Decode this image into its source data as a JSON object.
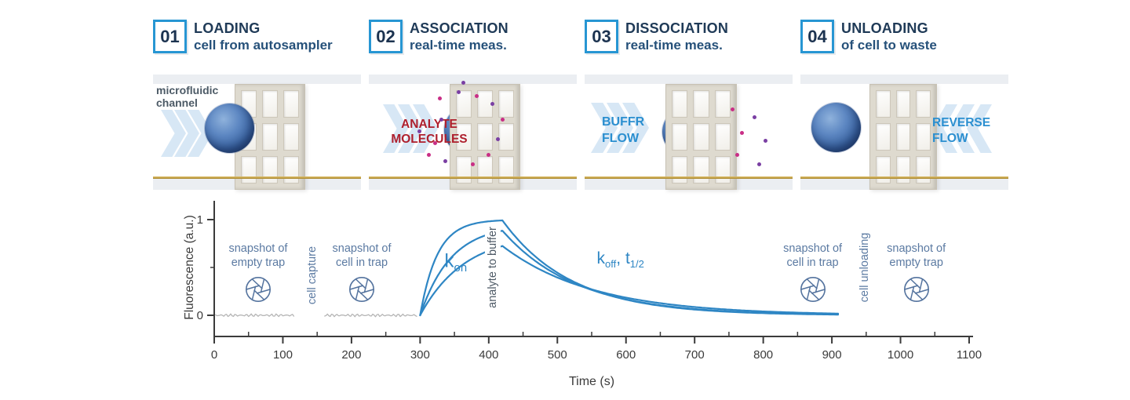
{
  "colors": {
    "accent_blue": "#2796d3",
    "navy_title": "#1f3a57",
    "flow_blue": "#2b8fd0",
    "analyte_red": "#ae1f2d",
    "chart_curve_blue": "#2e86c4",
    "baseline_gray": "#b5b5b5",
    "annotation_slate": "#5b7aa2",
    "axis_gray": "#3b3b3b",
    "gold_substrate": "#b8963c"
  },
  "steps": [
    {
      "number": "01",
      "title": "LOADING",
      "subtitle": "cell from autosampler",
      "panel_label": "microfluidic channel"
    },
    {
      "number": "02",
      "title": "ASSOCIATION",
      "subtitle": "real-time meas.",
      "panel_label": "ANALYTE MOLECULES"
    },
    {
      "number": "03",
      "title": "DISSOCIATION",
      "subtitle": "real-time meas.",
      "panel_label": "BUFFR FLOW"
    },
    {
      "number": "04",
      "title": "UNLOADING",
      "subtitle": "of cell to waste",
      "panel_label": "REVERSE FLOW"
    }
  ],
  "chart_data": {
    "type": "line",
    "title": "",
    "xlabel": "Time (s)",
    "ylabel": "Fluorescence (a.u.)",
    "xlim": [
      0,
      1100
    ],
    "ylim": [
      -0.29,
      1.15
    ],
    "xticks_major": [
      0,
      100,
      200,
      300,
      400,
      500,
      600,
      700,
      800,
      900,
      1000,
      1100
    ],
    "xticks_minor_step": 50,
    "yticks_major": [
      0,
      1
    ],
    "yticks_minor": [
      0.5
    ],
    "grid": false,
    "legend": "none",
    "series": [
      {
        "name": "baseline-empty-trap",
        "type": "noisy-flat",
        "color": "#b5b5b5",
        "t_start": 2,
        "t_end": 116,
        "value": 0
      },
      {
        "name": "baseline-cell-in-trap",
        "type": "noisy-flat",
        "color": "#b5b5b5",
        "t_start": 161,
        "t_end": 296,
        "value": 0
      },
      {
        "name": "binding-curve-fast",
        "type": "assoc-dissoc",
        "color": "#2e86c4",
        "t_start": 300,
        "t_switch": 420,
        "t_end": 910,
        "amplitude": 1.0,
        "tau_on_s": 25,
        "tau_off_s": 100
      },
      {
        "name": "binding-curve-mid",
        "type": "assoc-dissoc",
        "color": "#2e86c4",
        "t_start": 300,
        "t_switch": 420,
        "t_end": 910,
        "amplitude": 0.95,
        "tau_on_s": 45,
        "tau_off_s": 108
      },
      {
        "name": "binding-curve-slow",
        "type": "assoc-dissoc",
        "color": "#2e86c4",
        "t_start": 300,
        "t_switch": 420,
        "t_end": 910,
        "amplitude": 0.86,
        "tau_on_s": 65,
        "tau_off_s": 132
      }
    ],
    "annotations": [
      {
        "name": "snapshot-empty-trap-left-label",
        "lines": [
          "snapshot of",
          "empty trap"
        ],
        "x_s": 64,
        "y_au": 0.62,
        "icon": "aperture",
        "icon_y_au": 0.27
      },
      {
        "name": "cell-capture-label",
        "text": "cell capture",
        "x_s": 143,
        "y_au": 0.42,
        "rotate": true
      },
      {
        "name": "snapshot-cell-in-trap-left-label",
        "lines": [
          "snapshot of",
          "cell in trap"
        ],
        "x_s": 215,
        "y_au": 0.62,
        "icon": "aperture",
        "icon_y_au": 0.27
      },
      {
        "name": "kon-label",
        "parts": [
          {
            "text": "k"
          },
          {
            "text": "on",
            "sub": true
          }
        ],
        "x_s": 352,
        "y_au": 0.55,
        "color": "#2e86c4",
        "font_px": 24
      },
      {
        "name": "analyte-to-buffer-label",
        "text": "analyte to buffer",
        "x_s": 406,
        "y_au": 0.5,
        "rotate": true,
        "bg": "#ffffff",
        "color": "#4d5965"
      },
      {
        "name": "koff-thalf-label",
        "parts": [
          {
            "text": "k"
          },
          {
            "text": "off",
            "sub": true
          },
          {
            "text": ", t"
          },
          {
            "text": "1/2",
            "sub": true
          }
        ],
        "x_s": 592,
        "y_au": 0.58,
        "color": "#2e86c4",
        "font_px": 21
      },
      {
        "name": "snapshot-cell-in-trap-right-label",
        "lines": [
          "snapshot of",
          "cell in trap"
        ],
        "x_s": 872,
        "y_au": 0.62,
        "icon": "aperture",
        "icon_y_au": 0.27
      },
      {
        "name": "cell-unloading-label",
        "text": "cell unloading",
        "x_s": 948,
        "y_au": 0.5,
        "rotate": true
      },
      {
        "name": "snapshot-empty-trap-right-label",
        "lines": [
          "snapshot of",
          "empty trap"
        ],
        "x_s": 1023,
        "y_au": 0.62,
        "icon": "aperture",
        "icon_y_au": 0.27
      }
    ]
  }
}
